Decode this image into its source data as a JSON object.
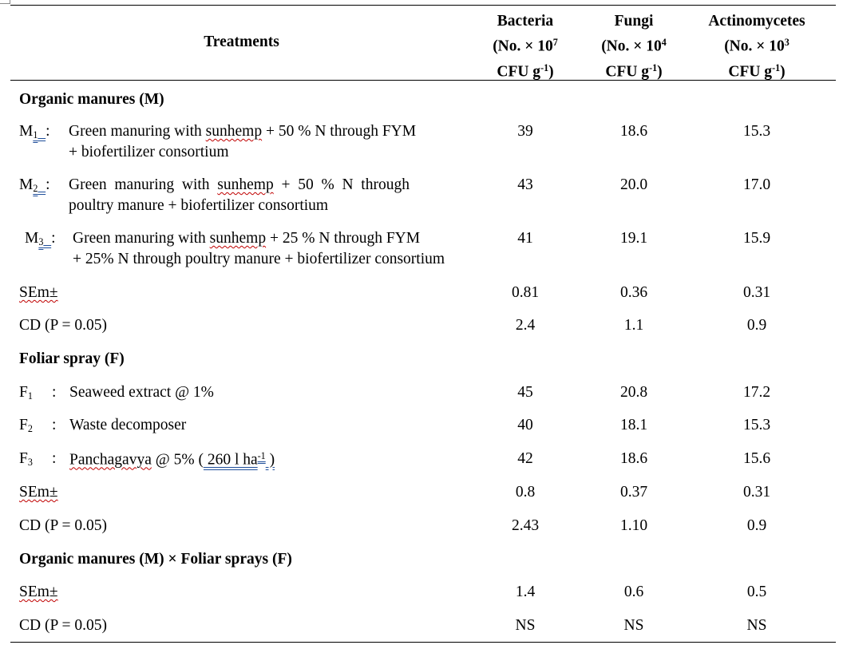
{
  "header": {
    "treatments": "Treatments",
    "col1": {
      "l1": "Bacteria",
      "l2a": "(No. × 10",
      "l2sup": "7",
      "l3a": "CFU g",
      "l3sup": "-1",
      "l3b": ")"
    },
    "col2": {
      "l1": "Fungi",
      "l2a": "(No. × 10",
      "l2sup": "4",
      "l3a": "CFU g",
      "l3sup": "-1",
      "l3b": ")"
    },
    "col3": {
      "l1": "Actinomycetes",
      "l2a": "(No. × 10",
      "l2sup": "3",
      "l3a": "CFU g",
      "l3sup": "-1",
      "l3b": ")"
    }
  },
  "section_m": "Organic manures (M)",
  "m1": {
    "code": "M",
    "sub": "1",
    "colon": ":",
    "l1a": "Green manuring with ",
    "l1w": "sunhemp",
    "l1b": " + 50 % N through FYM",
    "l2": "+ biofertilizer consortium",
    "v": [
      "39",
      "18.6",
      "15.3"
    ]
  },
  "m2": {
    "code": "M",
    "sub": "2",
    "colon": ":",
    "l1a": "Green  manuring  with  ",
    "l1w": "sunhemp",
    "l1b": "  +  50  %  N  through",
    "l2": "poultry manure + biofertilizer consortium",
    "v": [
      "43",
      "20.0",
      "17.0"
    ]
  },
  "m3": {
    "code": "M",
    "sub": "3",
    "colon": ":",
    "l1a": "Green manuring with ",
    "l1w": "sunhemp",
    "l1b": " + 25 % N through FYM",
    "l2": "+ 25% N through poultry manure + biofertilizer consortium",
    "v": [
      "41",
      "19.1",
      "15.9"
    ]
  },
  "m_sem": {
    "label": "SEm±",
    "v": [
      "0.81",
      "0.36",
      "0.31"
    ]
  },
  "m_cd": {
    "label": "CD (P = 0.05)",
    "v": [
      "2.4",
      "1.1",
      "0.9"
    ]
  },
  "section_f": "Foliar spray (F)",
  "f1": {
    "code": "F",
    "sub": "1",
    "colon": ":",
    "text": "Seaweed extract @ 1%",
    "v": [
      "45",
      "20.8",
      "17.2"
    ]
  },
  "f2": {
    "code": "F",
    "sub": "2",
    "colon": ":",
    "text": "Waste decomposer",
    "v": [
      "40",
      "18.1",
      "15.3"
    ]
  },
  "f3": {
    "code": "F",
    "sub": "3",
    "colon": ":",
    "w": "Panchagavya",
    "ta": " @ 5% (",
    "tb": " 260 l ha",
    "tsup": "-1",
    "tc": " )",
    "v": [
      "42",
      "18.6",
      "15.6"
    ]
  },
  "f_sem": {
    "label": "SEm±",
    "v": [
      "0.8",
      "0.37",
      "0.31"
    ]
  },
  "f_cd": {
    "label": "CD (P = 0.05)",
    "v": [
      "2.43",
      "1.10",
      "0.9"
    ]
  },
  "section_mf": "Organic manures (M) × Foliar sprays (F)",
  "mf_sem": {
    "label": "SEm±",
    "v": [
      "1.4",
      "0.6",
      "0.5"
    ]
  },
  "mf_cd": {
    "label": "CD (P = 0.05)",
    "v": [
      "NS",
      "NS",
      "NS"
    ]
  }
}
